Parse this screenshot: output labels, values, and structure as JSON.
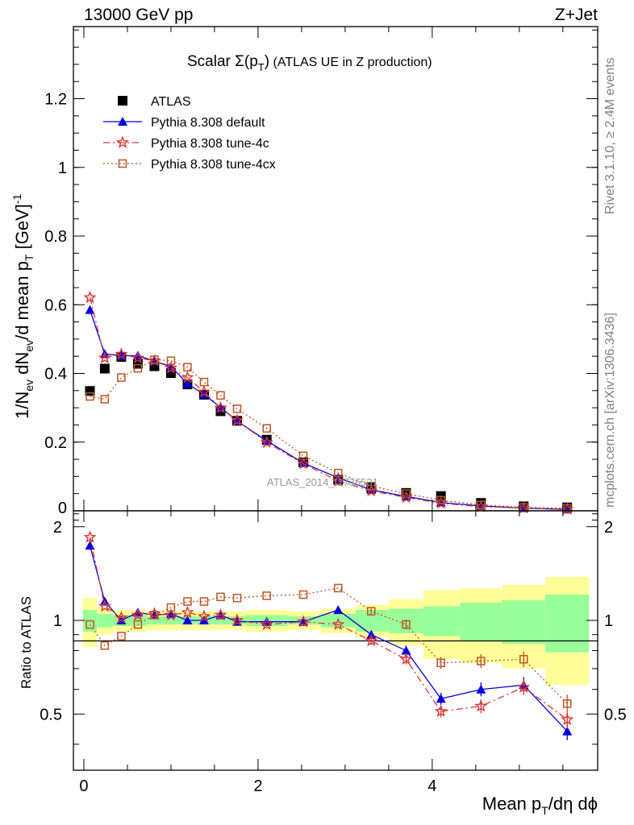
{
  "header": {
    "left": "13000 GeV pp",
    "right": "Z+Jet"
  },
  "side_text": {
    "top": "Rivet 3.1.10, ≥ 2.4M events",
    "bottom": "mcplots.cern.ch [arXiv:1306.3436]"
  },
  "watermark": "ATLAS_2014_I1736531",
  "colors": {
    "data": "#000000",
    "default": "#0000dd",
    "tune4c": "#dd3333",
    "tune4cx": "#bb5522",
    "band_inner": "#99ff99",
    "band_outer": "#ffff99"
  },
  "chart_data": [
    {
      "type": "scatter",
      "title_parts": {
        "main": "Scalar Σ(p",
        "sub": "T",
        "close": ")",
        "rest": " (ATLAS UE in Z production)"
      },
      "ylabel_parts": [
        "1/N",
        "ev",
        " dN",
        "ev",
        "/d mean p",
        "T",
        " [GeV]",
        "-1"
      ],
      "xlim": [
        -0.12,
        5.9
      ],
      "ylim": [
        0,
        1.41
      ],
      "yticks": [
        {
          "v": 0.2,
          "t": "0.2"
        },
        {
          "v": 0.4,
          "t": "0.4"
        },
        {
          "v": 0.6,
          "t": "0.6"
        },
        {
          "v": 0.8,
          "t": "0.8"
        },
        {
          "v": 1.0,
          "t": "1"
        },
        {
          "v": 1.2,
          "t": "1.2"
        }
      ],
      "ytick_zero_label": "0",
      "x": [
        0.07,
        0.24,
        0.43,
        0.62,
        0.81,
        1.0,
        1.19,
        1.38,
        1.57,
        1.76,
        2.1,
        2.52,
        2.92,
        3.3,
        3.7,
        4.1,
        4.56,
        5.05,
        5.55
      ],
      "series": [
        {
          "name": "ATLAS",
          "key": "data",
          "marker": "square",
          "values": [
            0.349,
            0.414,
            0.448,
            0.428,
            0.421,
            0.401,
            0.368,
            0.338,
            0.29,
            0.262,
            0.207,
            0.141,
            0.09,
            0.067,
            0.052,
            0.043,
            0.023,
            0.013,
            0.01
          ]
        },
        {
          "name": "Pythia 8.308 default",
          "key": "default",
          "marker": "triangle",
          "line": "solid",
          "values": [
            0.585,
            0.457,
            0.452,
            0.452,
            0.436,
            0.42,
            0.37,
            0.339,
            0.301,
            0.261,
            0.204,
            0.139,
            0.096,
            0.061,
            0.042,
            0.024,
            0.014,
            0.008,
            0.004
          ]
        },
        {
          "name": "Pythia 8.308 tune-4c",
          "key": "tune4c",
          "marker": "star",
          "line": "dashdot",
          "values": [
            0.621,
            0.445,
            0.456,
            0.445,
            0.437,
            0.416,
            0.388,
            0.346,
            0.3,
            0.263,
            0.199,
            0.137,
            0.087,
            0.058,
            0.039,
            0.022,
            0.012,
            0.008,
            0.005
          ]
        },
        {
          "name": "Pythia 8.308 tune-4cx",
          "key": "tune4cx",
          "marker": "opensquare",
          "line": "dotted",
          "values": [
            0.333,
            0.325,
            0.388,
            0.415,
            0.44,
            0.437,
            0.418,
            0.375,
            0.336,
            0.297,
            0.24,
            0.16,
            0.11,
            0.072,
            0.05,
            0.031,
            0.017,
            0.01,
            0.007
          ]
        }
      ]
    },
    {
      "type": "line",
      "ylabel": "Ratio to ATLAS",
      "xlabel_parts": [
        "Mean p",
        "T",
        "/dη dϕ"
      ],
      "xlim": [
        -0.12,
        5.9
      ],
      "ylim": [
        0.33,
        2.25
      ],
      "yticks": [
        {
          "v": 0.5,
          "t": "0.5"
        },
        {
          "v": 1.0,
          "t": "1"
        },
        {
          "v": 2.0,
          "t": "2"
        }
      ],
      "xticks": [
        {
          "v": 0,
          "t": "0"
        },
        {
          "v": 2,
          "t": "2"
        },
        {
          "v": 4,
          "t": "4"
        }
      ],
      "x": [
        0.07,
        0.24,
        0.43,
        0.62,
        0.81,
        1.0,
        1.19,
        1.38,
        1.57,
        1.76,
        2.1,
        2.52,
        2.92,
        3.3,
        3.7,
        4.1,
        4.56,
        5.05,
        5.55
      ],
      "bin_edges": [
        -0.01,
        0.15,
        0.33,
        0.53,
        0.72,
        0.9,
        1.1,
        1.29,
        1.48,
        1.67,
        1.86,
        2.34,
        2.72,
        3.12,
        3.5,
        3.9,
        4.32,
        4.8,
        5.3,
        5.8
      ],
      "band_outer": [
        0.18,
        0.1,
        0.08,
        0.08,
        0.07,
        0.07,
        0.07,
        0.07,
        0.07,
        0.07,
        0.08,
        0.07,
        0.09,
        0.12,
        0.17,
        0.25,
        0.27,
        0.3,
        0.38
      ],
      "band_inner": [
        0.08,
        0.05,
        0.04,
        0.04,
        0.03,
        0.03,
        0.03,
        0.03,
        0.03,
        0.03,
        0.04,
        0.03,
        0.05,
        0.08,
        0.09,
        0.11,
        0.14,
        0.16,
        0.21
      ],
      "series": [
        {
          "name": "Pythia 8.308 default",
          "key": "default",
          "marker": "triangle",
          "line": "solid",
          "values": [
            1.74,
            1.15,
            1.0,
            1.06,
            1.04,
            1.05,
            1.0,
            1.0,
            1.04,
            0.99,
            0.99,
            0.99,
            1.08,
            0.9,
            0.8,
            0.56,
            0.6,
            0.62,
            0.44
          ]
        },
        {
          "name": "Pythia 8.308 tune-4c",
          "key": "tune4c",
          "marker": "star",
          "line": "dashdot",
          "values": [
            1.85,
            1.11,
            1.02,
            1.04,
            1.05,
            1.04,
            1.06,
            1.03,
            1.04,
            1.0,
            0.97,
            0.99,
            0.97,
            0.86,
            0.75,
            0.51,
            0.53,
            0.61,
            0.48
          ]
        },
        {
          "name": "Pythia 8.308 tune-4cx",
          "key": "tune4cx",
          "marker": "opensquare",
          "line": "dotted",
          "values": [
            0.97,
            0.83,
            0.89,
            0.97,
            1.04,
            1.1,
            1.15,
            1.15,
            1.19,
            1.18,
            1.2,
            1.21,
            1.27,
            1.07,
            0.97,
            0.73,
            0.74,
            0.75,
            0.54
          ]
        }
      ]
    }
  ]
}
